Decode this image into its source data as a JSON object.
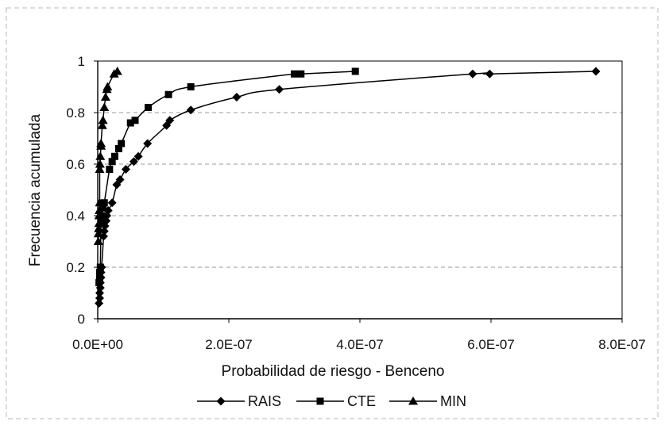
{
  "chart_data": {
    "type": "scatter",
    "xlabel": "Probabilidad de riesgo - Benceno",
    "ylabel": "Frecuencia acumulada",
    "xlim": [
      0,
      8e-07
    ],
    "ylim": [
      0,
      1
    ],
    "x_ticks": [
      0,
      2e-07,
      4e-07,
      6e-07,
      8e-07
    ],
    "x_tick_labels": [
      "0.0E+00",
      "2.0E-07",
      "4.0E-07",
      "6.0E-07",
      "8.0E-07"
    ],
    "y_ticks": [
      0,
      0.2,
      0.4,
      0.6,
      0.8,
      1
    ],
    "y_tick_labels": [
      "0",
      "0.2",
      "0.4",
      "0.6",
      "0.8",
      "1"
    ],
    "grid": "horizontal dashed",
    "legend_position": "bottom",
    "series": [
      {
        "name": "RAIS",
        "marker": "diamond",
        "points": [
          [
            2e-09,
            0.06
          ],
          [
            3e-09,
            0.08
          ],
          [
            3e-09,
            0.1
          ],
          [
            4e-09,
            0.12
          ],
          [
            4e-09,
            0.14
          ],
          [
            5e-09,
            0.16
          ],
          [
            5e-09,
            0.18
          ],
          [
            6e-09,
            0.2
          ],
          [
            9e-09,
            0.32
          ],
          [
            1e-08,
            0.34
          ],
          [
            1.1e-08,
            0.36
          ],
          [
            1.3e-08,
            0.38
          ],
          [
            1.4e-08,
            0.4
          ],
          [
            1.6e-08,
            0.42
          ],
          [
            2.2e-08,
            0.45
          ],
          [
            2.9e-08,
            0.52
          ],
          [
            3.4e-08,
            0.54
          ],
          [
            4.3e-08,
            0.58
          ],
          [
            5.5e-08,
            0.61
          ],
          [
            6.2e-08,
            0.63
          ],
          [
            7.6e-08,
            0.68
          ],
          [
            1.05e-07,
            0.75
          ],
          [
            1.1e-07,
            0.77
          ],
          [
            1.42e-07,
            0.81
          ],
          [
            2.12e-07,
            0.86
          ],
          [
            2.77e-07,
            0.89
          ],
          [
            5.72e-07,
            0.95
          ],
          [
            5.98e-07,
            0.95
          ],
          [
            7.6e-07,
            0.96
          ]
        ]
      },
      {
        "name": "CTE",
        "marker": "square",
        "points": [
          [
            2e-09,
            0.14
          ],
          [
            3e-09,
            0.16
          ],
          [
            3e-09,
            0.18
          ],
          [
            4e-09,
            0.2
          ],
          [
            5e-09,
            0.38
          ],
          [
            6e-09,
            0.4
          ],
          [
            8e-09,
            0.43
          ],
          [
            1e-08,
            0.45
          ],
          [
            1.8e-08,
            0.58
          ],
          [
            2.2e-08,
            0.61
          ],
          [
            2.6e-08,
            0.63
          ],
          [
            3.2e-08,
            0.66
          ],
          [
            3.6e-08,
            0.68
          ],
          [
            5e-08,
            0.76
          ],
          [
            5.7e-08,
            0.77
          ],
          [
            7.7e-08,
            0.82
          ],
          [
            1.08e-07,
            0.87
          ],
          [
            1.42e-07,
            0.9
          ],
          [
            3e-07,
            0.95
          ],
          [
            3.1e-07,
            0.95
          ],
          [
            3.93e-07,
            0.96
          ]
        ]
      },
      {
        "name": "MIN",
        "marker": "triangle",
        "points": [
          [
            1e-09,
            0.3
          ],
          [
            1e-09,
            0.33
          ],
          [
            1.5e-09,
            0.35
          ],
          [
            2e-09,
            0.37
          ],
          [
            2e-09,
            0.4
          ],
          [
            2.5e-09,
            0.42
          ],
          [
            3e-09,
            0.45
          ],
          [
            3e-09,
            0.58
          ],
          [
            3.5e-09,
            0.6
          ],
          [
            4e-09,
            0.63
          ],
          [
            5e-09,
            0.67
          ],
          [
            5e-09,
            0.68
          ],
          [
            7e-09,
            0.75
          ],
          [
            8e-09,
            0.77
          ],
          [
            1e-08,
            0.82
          ],
          [
            1.2e-08,
            0.86
          ],
          [
            1.4e-08,
            0.89
          ],
          [
            1.5e-08,
            0.9
          ],
          [
            2.5e-08,
            0.95
          ],
          [
            3e-08,
            0.96
          ]
        ]
      }
    ]
  }
}
